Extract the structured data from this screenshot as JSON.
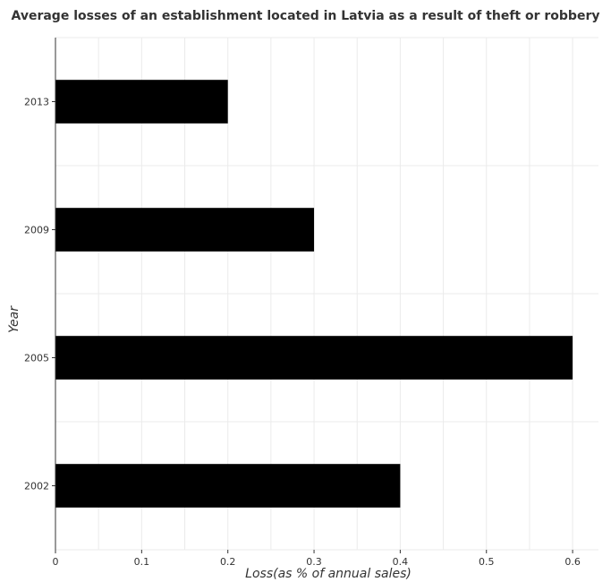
{
  "chart_data": {
    "type": "bar",
    "orientation": "horizontal",
    "title": "Average losses of an establishment located in Latvia as a result of theft or robbery",
    "xlabel": "Loss(as % of annual sales)",
    "ylabel": "Year",
    "categories": [
      "2002",
      "2005",
      "2009",
      "2013"
    ],
    "values": [
      0.4,
      0.6,
      0.3,
      0.2
    ],
    "xlim": [
      0,
      0.63
    ],
    "xticks": [
      0,
      0.1,
      0.2,
      0.3,
      0.4,
      0.5,
      0.6
    ],
    "xtick_labels": [
      "0",
      "0.1",
      "0.2",
      "0.3",
      "0.4",
      "0.5",
      "0.6"
    ],
    "grid": true,
    "legend": "none",
    "bar_color": "#000000"
  }
}
